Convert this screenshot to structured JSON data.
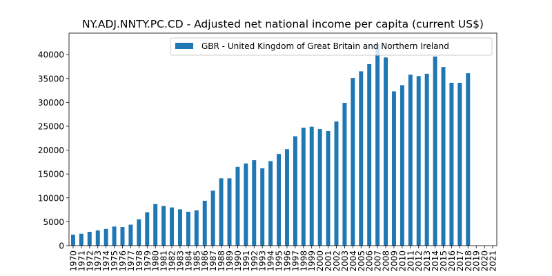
{
  "chart_data": {
    "type": "bar",
    "title": "NY.ADJ.NNTY.PC.CD - Adjusted net national income per capita (current US$)",
    "xlabel": "",
    "ylabel": "",
    "categories": [
      "1970",
      "1971",
      "1972",
      "1973",
      "1974",
      "1975",
      "1976",
      "1977",
      "1978",
      "1979",
      "1980",
      "1981",
      "1982",
      "1983",
      "1984",
      "1985",
      "1986",
      "1987",
      "1988",
      "1989",
      "1990",
      "1991",
      "1992",
      "1993",
      "1994",
      "1995",
      "1996",
      "1997",
      "1998",
      "1999",
      "2000",
      "2001",
      "2002",
      "2003",
      "2004",
      "2005",
      "2006",
      "2007",
      "2008",
      "2009",
      "2010",
      "2011",
      "2012",
      "2013",
      "2014",
      "2015",
      "2016",
      "2017",
      "2018",
      "2019",
      "2020",
      "2021"
    ],
    "series": [
      {
        "name": "GBR - United Kingdom of Great Britain and Northern Ireland",
        "color": "#1f77b4",
        "values": [
          2300,
          2500,
          2900,
          3200,
          3500,
          4000,
          3900,
          4400,
          5500,
          7000,
          8700,
          8300,
          8000,
          7600,
          7100,
          7400,
          9400,
          11500,
          14100,
          14100,
          16500,
          17200,
          17900,
          16200,
          17700,
          19200,
          20200,
          22900,
          24700,
          24900,
          24400,
          24000,
          26000,
          29900,
          35100,
          36500,
          38000,
          42300,
          39400,
          32300,
          33600,
          35800,
          35500,
          36000,
          39600,
          37400,
          34100,
          34100,
          36100,
          null,
          null,
          null
        ]
      }
    ],
    "ylim": [
      0,
      44500
    ],
    "yticks": [
      0,
      5000,
      10000,
      15000,
      20000,
      25000,
      30000,
      35000,
      40000
    ],
    "grid": false,
    "legend_position": "top-right"
  }
}
